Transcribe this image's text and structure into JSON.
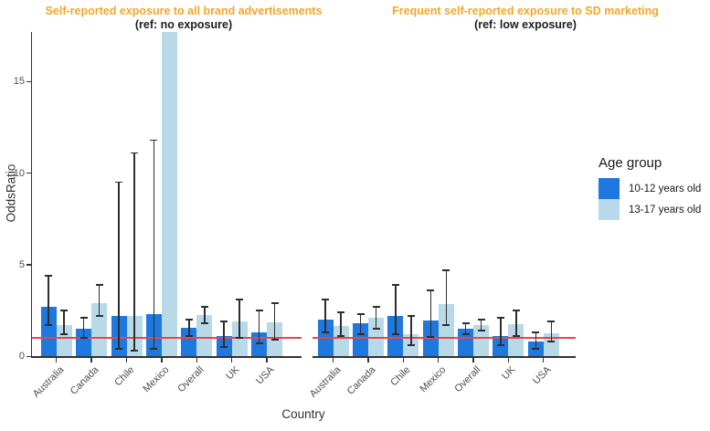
{
  "figure": {
    "y_axis_title": "OddsRatio",
    "x_axis_title": "Country",
    "title_color": "#F5A623",
    "reference_line": {
      "y": 1,
      "color": "#E8474A"
    }
  },
  "legend": {
    "title": "Age group",
    "entries": [
      {
        "label": "10-12 years old",
        "color": "#1F78DD"
      },
      {
        "label": "13-17 years old",
        "color": "#B8D9E8"
      }
    ]
  },
  "axes": {
    "y_ticks": [
      0,
      5,
      10,
      15
    ],
    "categories": [
      "Australia",
      "Canada",
      "Chile",
      "Mexico",
      "Overall",
      "UK",
      "USA"
    ]
  },
  "chart_data": [
    {
      "type": "bar",
      "title": "Self-reported exposure to all brand advertisements",
      "subtitle": "(ref: no exposure)",
      "categories": [
        "Australia",
        "Canada",
        "Chile",
        "Mexico",
        "Overall",
        "UK",
        "USA"
      ],
      "series": [
        {
          "name": "10-12 years old",
          "color": "#1F78DD",
          "values": [
            2.7,
            1.5,
            2.2,
            2.3,
            1.55,
            1.1,
            1.3
          ],
          "ci_low": [
            1.7,
            1.0,
            0.4,
            0.4,
            1.1,
            0.5,
            0.7
          ],
          "ci_high": [
            4.4,
            2.1,
            9.5,
            11.8,
            2.0,
            1.9,
            2.5
          ]
        },
        {
          "name": "13-17 years old",
          "color": "#B8D9E8",
          "values": [
            1.7,
            2.9,
            2.2,
            17.7,
            2.25,
            1.9,
            1.85
          ],
          "ci_low": [
            1.2,
            2.2,
            0.3,
            null,
            1.8,
            1.0,
            0.9
          ],
          "ci_high": [
            2.5,
            3.9,
            11.1,
            null,
            2.7,
            3.1,
            2.9
          ]
        }
      ],
      "xlabel": "Country",
      "ylabel": "OddsRatio",
      "ylim": [
        0,
        17.9
      ],
      "ref_line": 1,
      "grid": false,
      "legend_position": "right"
    },
    {
      "type": "bar",
      "title": "Frequent self-reported exposure to SD marketing",
      "subtitle": "(ref: low exposure)",
      "categories": [
        "Australia",
        "Canada",
        "Chile",
        "Mexico",
        "Overall",
        "UK",
        "USA"
      ],
      "series": [
        {
          "name": "10-12 years old",
          "color": "#1F78DD",
          "values": [
            2.0,
            1.8,
            2.2,
            1.95,
            1.5,
            1.1,
            0.8
          ],
          "ci_low": [
            1.3,
            1.2,
            1.2,
            1.05,
            1.2,
            0.6,
            0.4
          ],
          "ci_high": [
            3.1,
            2.3,
            3.9,
            3.6,
            1.8,
            2.1,
            1.3
          ]
        },
        {
          "name": "13-17 years old",
          "color": "#B8D9E8",
          "values": [
            1.65,
            2.1,
            1.2,
            2.85,
            1.7,
            1.75,
            1.25
          ],
          "ci_low": [
            1.1,
            1.5,
            0.6,
            1.7,
            1.4,
            1.1,
            0.8
          ],
          "ci_high": [
            2.4,
            2.7,
            2.2,
            4.7,
            2.0,
            2.5,
            1.9
          ]
        }
      ],
      "xlabel": "Country",
      "ylabel": "OddsRatio",
      "ylim": [
        0,
        17.9
      ],
      "ref_line": 1,
      "grid": false,
      "legend_position": "right"
    }
  ]
}
